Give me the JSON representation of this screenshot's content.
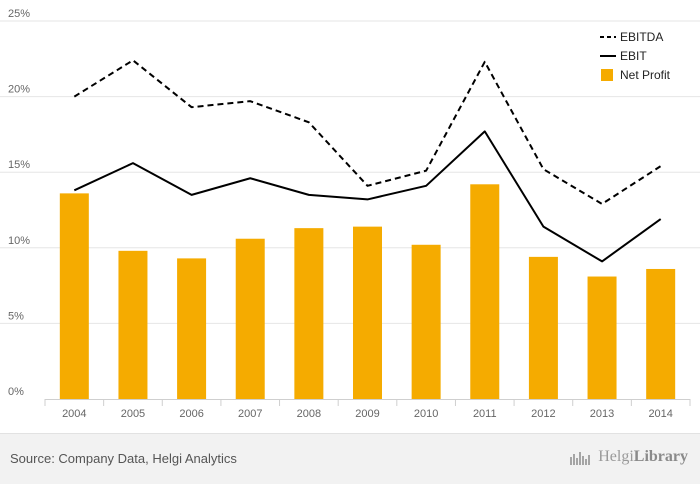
{
  "chart_data": {
    "type": "bar",
    "categories": [
      "2004",
      "2005",
      "2006",
      "2007",
      "2008",
      "2009",
      "2010",
      "2011",
      "2012",
      "2013",
      "2014"
    ],
    "ylim": [
      0,
      25
    ],
    "yticks": [
      0,
      5,
      10,
      15,
      20,
      25
    ],
    "ytick_labels": [
      "0%",
      "5%",
      "10%",
      "15%",
      "20%",
      "25%"
    ],
    "grid": true,
    "legend_position": "top-right",
    "series": [
      {
        "name": "EBITDA",
        "kind": "line",
        "style": "dashed",
        "color": "#000000",
        "values": [
          20.0,
          22.4,
          19.3,
          19.7,
          18.3,
          14.1,
          15.1,
          22.3,
          15.2,
          12.9,
          15.4
        ]
      },
      {
        "name": "EBIT",
        "kind": "line",
        "style": "solid",
        "color": "#000000",
        "values": [
          13.8,
          15.6,
          13.5,
          14.6,
          13.5,
          13.2,
          14.1,
          17.7,
          11.4,
          9.1,
          11.9
        ]
      },
      {
        "name": "Net Profit",
        "kind": "bar",
        "color": "#f5ab00",
        "values": [
          13.6,
          9.8,
          9.3,
          10.6,
          11.3,
          11.4,
          10.2,
          14.2,
          9.4,
          8.1,
          8.6
        ]
      }
    ]
  },
  "footer": {
    "source": "Source: Company Data, Helgi Analytics",
    "brand_light": "Helgi",
    "brand_bold": "Library",
    "brand_icon": "helgi-library-logo-icon"
  }
}
